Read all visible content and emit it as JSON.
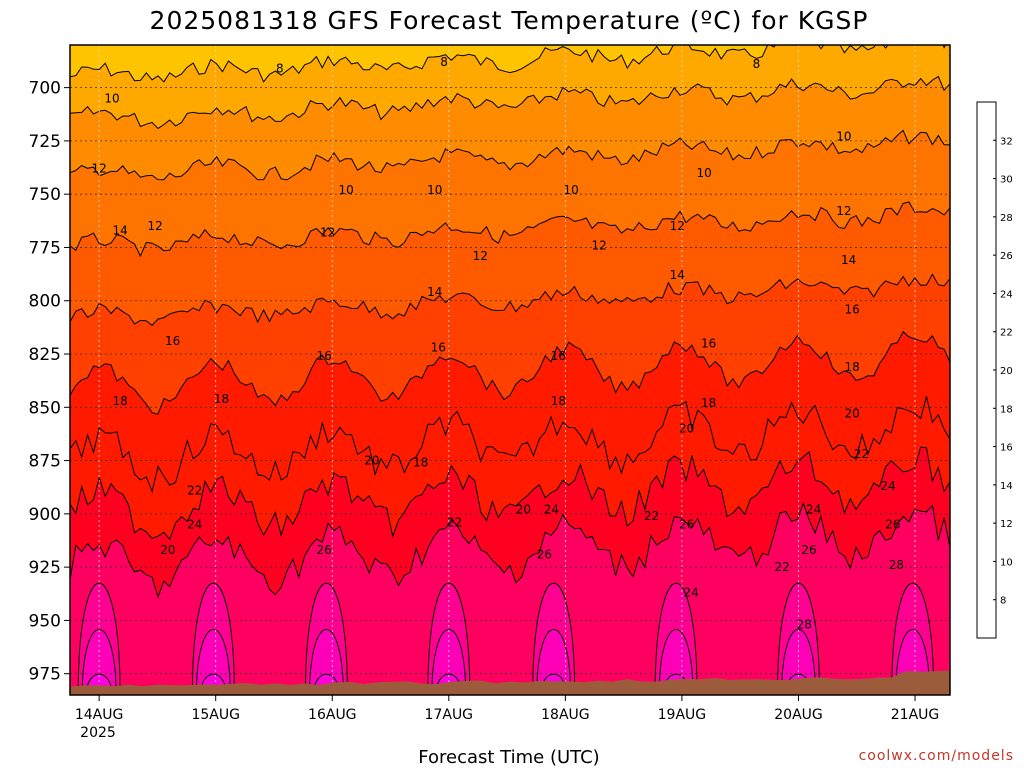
{
  "title": "2025081318 GFS Forecast Temperature (ºC) for KGSP",
  "credit": "coolwx.com/models",
  "colors": {
    "ground": "#9c5b3a",
    "contour_line": "#000000",
    "grid": "#7f7f7f"
  },
  "chart_data": {
    "type": "heatmap",
    "title": "2025081318 GFS Forecast Temperature (ºC) for KGSP",
    "xlabel": "Forecast Time (UTC)",
    "ylabel": "",
    "x_ticks": [
      "14AUG",
      "15AUG",
      "16AUG",
      "17AUG",
      "18AUG",
      "19AUG",
      "20AUG",
      "21AUG"
    ],
    "x_year_label": "2025",
    "x_range_days": [
      13.75,
      21.3
    ],
    "y_ticks": [
      700,
      725,
      750,
      775,
      800,
      825,
      850,
      875,
      900,
      925,
      950,
      975
    ],
    "y_range_hpa": [
      680,
      985
    ],
    "y_inverted": true,
    "grid": true,
    "colorbar": {
      "ticks": [
        8,
        10,
        12,
        14,
        16,
        18,
        20,
        22,
        24,
        26,
        28,
        30,
        32
      ],
      "range": [
        6,
        34
      ],
      "colors": [
        "#ffc400",
        "#ffa800",
        "#ff8c00",
        "#ff7300",
        "#ff5a00",
        "#ff4000",
        "#ff1a00",
        "#ff0020",
        "#ff0060",
        "#ff0090",
        "#ff00b8",
        "#ff00dc",
        "#ff00ff"
      ]
    },
    "levels_lapse": {
      "note_levels_hpa": [
        700,
        725,
        750,
        775,
        800,
        825,
        850,
        875,
        900,
        925,
        950,
        975
      ],
      "mean_temperature_c": [
        8.5,
        11,
        12.5,
        14,
        15.5,
        17,
        18.5,
        20,
        22,
        24,
        26,
        28
      ]
    },
    "contour_labels": [
      {
        "day": 15.55,
        "hpa": 691,
        "value": "8"
      },
      {
        "day": 16.96,
        "hpa": 688,
        "value": "8"
      },
      {
        "day": 19.64,
        "hpa": 689,
        "value": "8"
      },
      {
        "day": 14.11,
        "hpa": 705,
        "value": "10"
      },
      {
        "day": 16.12,
        "hpa": 748,
        "value": "10"
      },
      {
        "day": 16.88,
        "hpa": 748,
        "value": "10"
      },
      {
        "day": 18.05,
        "hpa": 748,
        "value": "10"
      },
      {
        "day": 19.19,
        "hpa": 740,
        "value": "10"
      },
      {
        "day": 20.39,
        "hpa": 723,
        "value": "10"
      },
      {
        "day": 14.0,
        "hpa": 738,
        "value": "12"
      },
      {
        "day": 14.48,
        "hpa": 765,
        "value": "12"
      },
      {
        "day": 15.96,
        "hpa": 768,
        "value": "12"
      },
      {
        "day": 17.27,
        "hpa": 779,
        "value": "12"
      },
      {
        "day": 18.29,
        "hpa": 774,
        "value": "12"
      },
      {
        "day": 18.96,
        "hpa": 765,
        "value": "12"
      },
      {
        "day": 20.39,
        "hpa": 758,
        "value": "12"
      },
      {
        "day": 14.18,
        "hpa": 767,
        "value": "14"
      },
      {
        "day": 16.88,
        "hpa": 796,
        "value": "14"
      },
      {
        "day": 18.96,
        "hpa": 788,
        "value": "14"
      },
      {
        "day": 20.43,
        "hpa": 781,
        "value": "14"
      },
      {
        "day": 14.63,
        "hpa": 819,
        "value": "16"
      },
      {
        "day": 15.93,
        "hpa": 826,
        "value": "16"
      },
      {
        "day": 16.91,
        "hpa": 822,
        "value": "16"
      },
      {
        "day": 17.94,
        "hpa": 826,
        "value": "16"
      },
      {
        "day": 19.23,
        "hpa": 820,
        "value": "16"
      },
      {
        "day": 20.46,
        "hpa": 804,
        "value": "16"
      },
      {
        "day": 14.18,
        "hpa": 847,
        "value": "18"
      },
      {
        "day": 15.05,
        "hpa": 846,
        "value": "18"
      },
      {
        "day": 16.76,
        "hpa": 876,
        "value": "18"
      },
      {
        "day": 17.94,
        "hpa": 847,
        "value": "18"
      },
      {
        "day": 19.23,
        "hpa": 848,
        "value": "18"
      },
      {
        "day": 20.46,
        "hpa": 831,
        "value": "18"
      },
      {
        "day": 16.34,
        "hpa": 875,
        "value": "20"
      },
      {
        "day": 17.64,
        "hpa": 898,
        "value": "20"
      },
      {
        "day": 19.04,
        "hpa": 860,
        "value": "20"
      },
      {
        "day": 20.46,
        "hpa": 853,
        "value": "20"
      },
      {
        "day": 14.59,
        "hpa": 917,
        "value": "20"
      },
      {
        "day": 14.82,
        "hpa": 889,
        "value": "22"
      },
      {
        "day": 17.05,
        "hpa": 904,
        "value": "22"
      },
      {
        "day": 18.74,
        "hpa": 901,
        "value": "22"
      },
      {
        "day": 19.86,
        "hpa": 925,
        "value": "22"
      },
      {
        "day": 20.54,
        "hpa": 872,
        "value": "22"
      },
      {
        "day": 14.82,
        "hpa": 905,
        "value": "24"
      },
      {
        "day": 17.88,
        "hpa": 898,
        "value": "24"
      },
      {
        "day": 19.08,
        "hpa": 937,
        "value": "24"
      },
      {
        "day": 20.13,
        "hpa": 898,
        "value": "24"
      },
      {
        "day": 20.77,
        "hpa": 887,
        "value": "24"
      },
      {
        "day": 15.93,
        "hpa": 917,
        "value": "26"
      },
      {
        "day": 17.82,
        "hpa": 919,
        "value": "26"
      },
      {
        "day": 19.04,
        "hpa": 905,
        "value": "26"
      },
      {
        "day": 20.09,
        "hpa": 917,
        "value": "26"
      },
      {
        "day": 20.81,
        "hpa": 905,
        "value": "26"
      },
      {
        "day": 20.05,
        "hpa": 952,
        "value": "28"
      },
      {
        "day": 20.84,
        "hpa": 924,
        "value": "28"
      }
    ]
  }
}
